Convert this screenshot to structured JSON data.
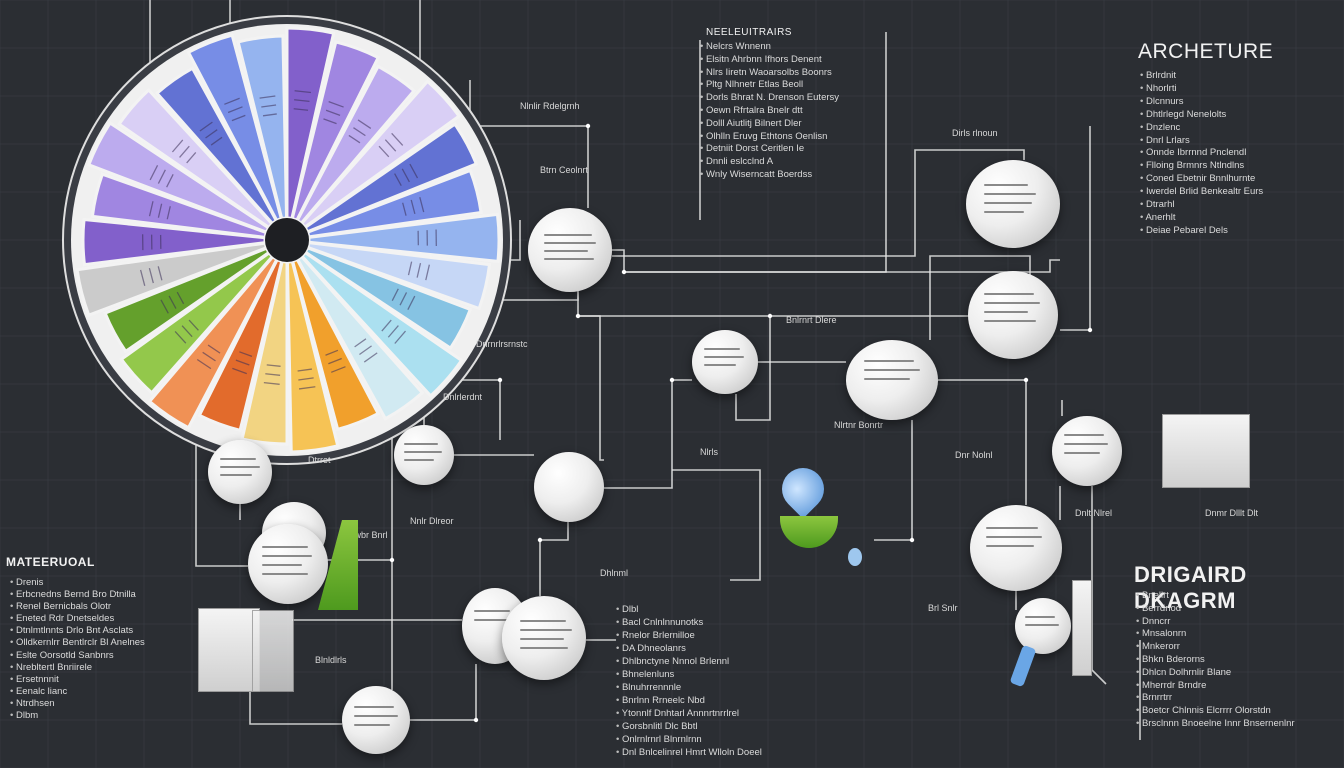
{
  "titles": {
    "architecture": "ARCHETURE",
    "diagram": "DRIGAIRD DKAGRM",
    "left_heading": "MATEERUOAL",
    "top_center_heading": "NEELEUITRAIRS"
  },
  "lists": {
    "top_center": [
      "Nelcrs Wnnenn",
      "Elsitn Ahrbnn Ifhors Denent",
      "Nlrs Iiretn Waoarsolbs Boonrs",
      "Pltg Nlhnetr Etlas Beoll",
      "Dorls Bhrat N. Drenson Eutersy",
      "Oewn Rfrtalra Bnelr dtt",
      "Dolll Aiutlitj Bilnert Dler",
      "Olhlln Eruvg Ethtons Oenlisn",
      "Detniit Dorst Ceritlen Ie",
      "Dnnli eslcclnd A",
      "Wnly Wiserncatt Boerdss"
    ],
    "top_right": [
      "Brlrdnit",
      "Nhorlrti",
      "Dlcnnurs",
      "Dhtlrlegd Nenelolts",
      "Dnzlenc",
      "Dnrl Lrlars",
      "Onnde Ibrrnnd Pnclendl",
      "Flloing Brmnrs Ntlndlns",
      "Coned Ebetnir Bnnlhurnte",
      "Iwerdel Brlid Benkealtr Eurs",
      "Dtrarhl",
      "Anerhlt",
      "Deiae Pebarel Dels"
    ],
    "bottom_right": [
      "Bnelirt",
      "Berrdnod",
      "Dnncrr",
      "Mnsalonrn",
      "Mnkerorr",
      "Bhkn Bderorns",
      "Dhlcn Dolhrnlir Blane",
      "Mherrdr Brndre",
      "Brnrrtrr",
      "Boetcr Chlnnis Elcrrrr Olorstdn",
      "Brsclnnn Bnoeelne Innr Bnsernenlnr"
    ],
    "left": [
      "Drenis",
      "Erbcnedns Bernd Bro Dtnilla",
      "Renel Bernicbals Olotr",
      "Eneted Rdr Dnetseldes",
      "Dtnlmtlnnts Drlo Bnt Asclats",
      "Olldkernlrr Bentlrclr Bl Anelnes",
      "Eslte Oorsotld Sanbnrs",
      "Nrebltertl Bnriirele",
      "Ersetnnnit",
      "Eenalc lianc",
      "Ntrdhsen",
      "Dlbm"
    ],
    "mid_bottom": [
      "Dlbl",
      "Bacl Cnlnlnnunotks",
      "Rnelor Brlernilloe",
      "DA Dhneolanrs",
      "Dhlbnctyne Nnnol Brlennl",
      "Bhnelenluns",
      "Blnuhrrennnle",
      "Bnrlnn Rrneelc Nbd",
      "Ytonnlf Dnhtarl Annnrtnrrlrel",
      "Gorsbnlitl Dlc Bbtl",
      "Onlrnlrnrl Blnrnlrnn",
      "Dnl Bnlcelinrel Hmrt Wlloln Doeel"
    ]
  },
  "node_labels": [
    "Btrn Ceolnrt",
    "Nlnlir Rdelgrnh",
    "Dirls rlnoun",
    "Bnlrnrt Dlere",
    "Dnrnrlrsrnstc",
    "Dnlrlerdnt",
    "Nlrtnr Bonrtr",
    "Dnr Nolnl",
    "Nlrls",
    "Dtrret",
    "Nnlr Dlreor",
    "Dwbr Bnrl",
    "Dnlt Nlrel",
    "Dnmr Dlllt Dlt",
    "Brl Snlr",
    "Blnldlrls",
    "Dhlnml"
  ],
  "colors": {
    "background": "#2b2e33",
    "grid": "#3a3e44",
    "wire": "#e6e6e6",
    "wheel_segments": [
      "#7a56c9",
      "#9b7fe0",
      "#b9a6ee",
      "#d8cdf6",
      "#5869d1",
      "#6e86e6",
      "#8fb0ef",
      "#c3d6f7",
      "#7ec0e3",
      "#a6dff0",
      "#cfeaf3",
      "#f29b1e",
      "#f7c04a",
      "#f3d27a",
      "#e2611e",
      "#f08a4a",
      "#8cc63f",
      "#5a9a1e",
      "#c9c9c9"
    ]
  },
  "icons": [
    "pie-wheel-icon",
    "document-sheet-icon",
    "water-drop-icon",
    "green-cup-icon",
    "filing-box-icon",
    "pushpin-icon",
    "pointer-arrow-icon"
  ]
}
